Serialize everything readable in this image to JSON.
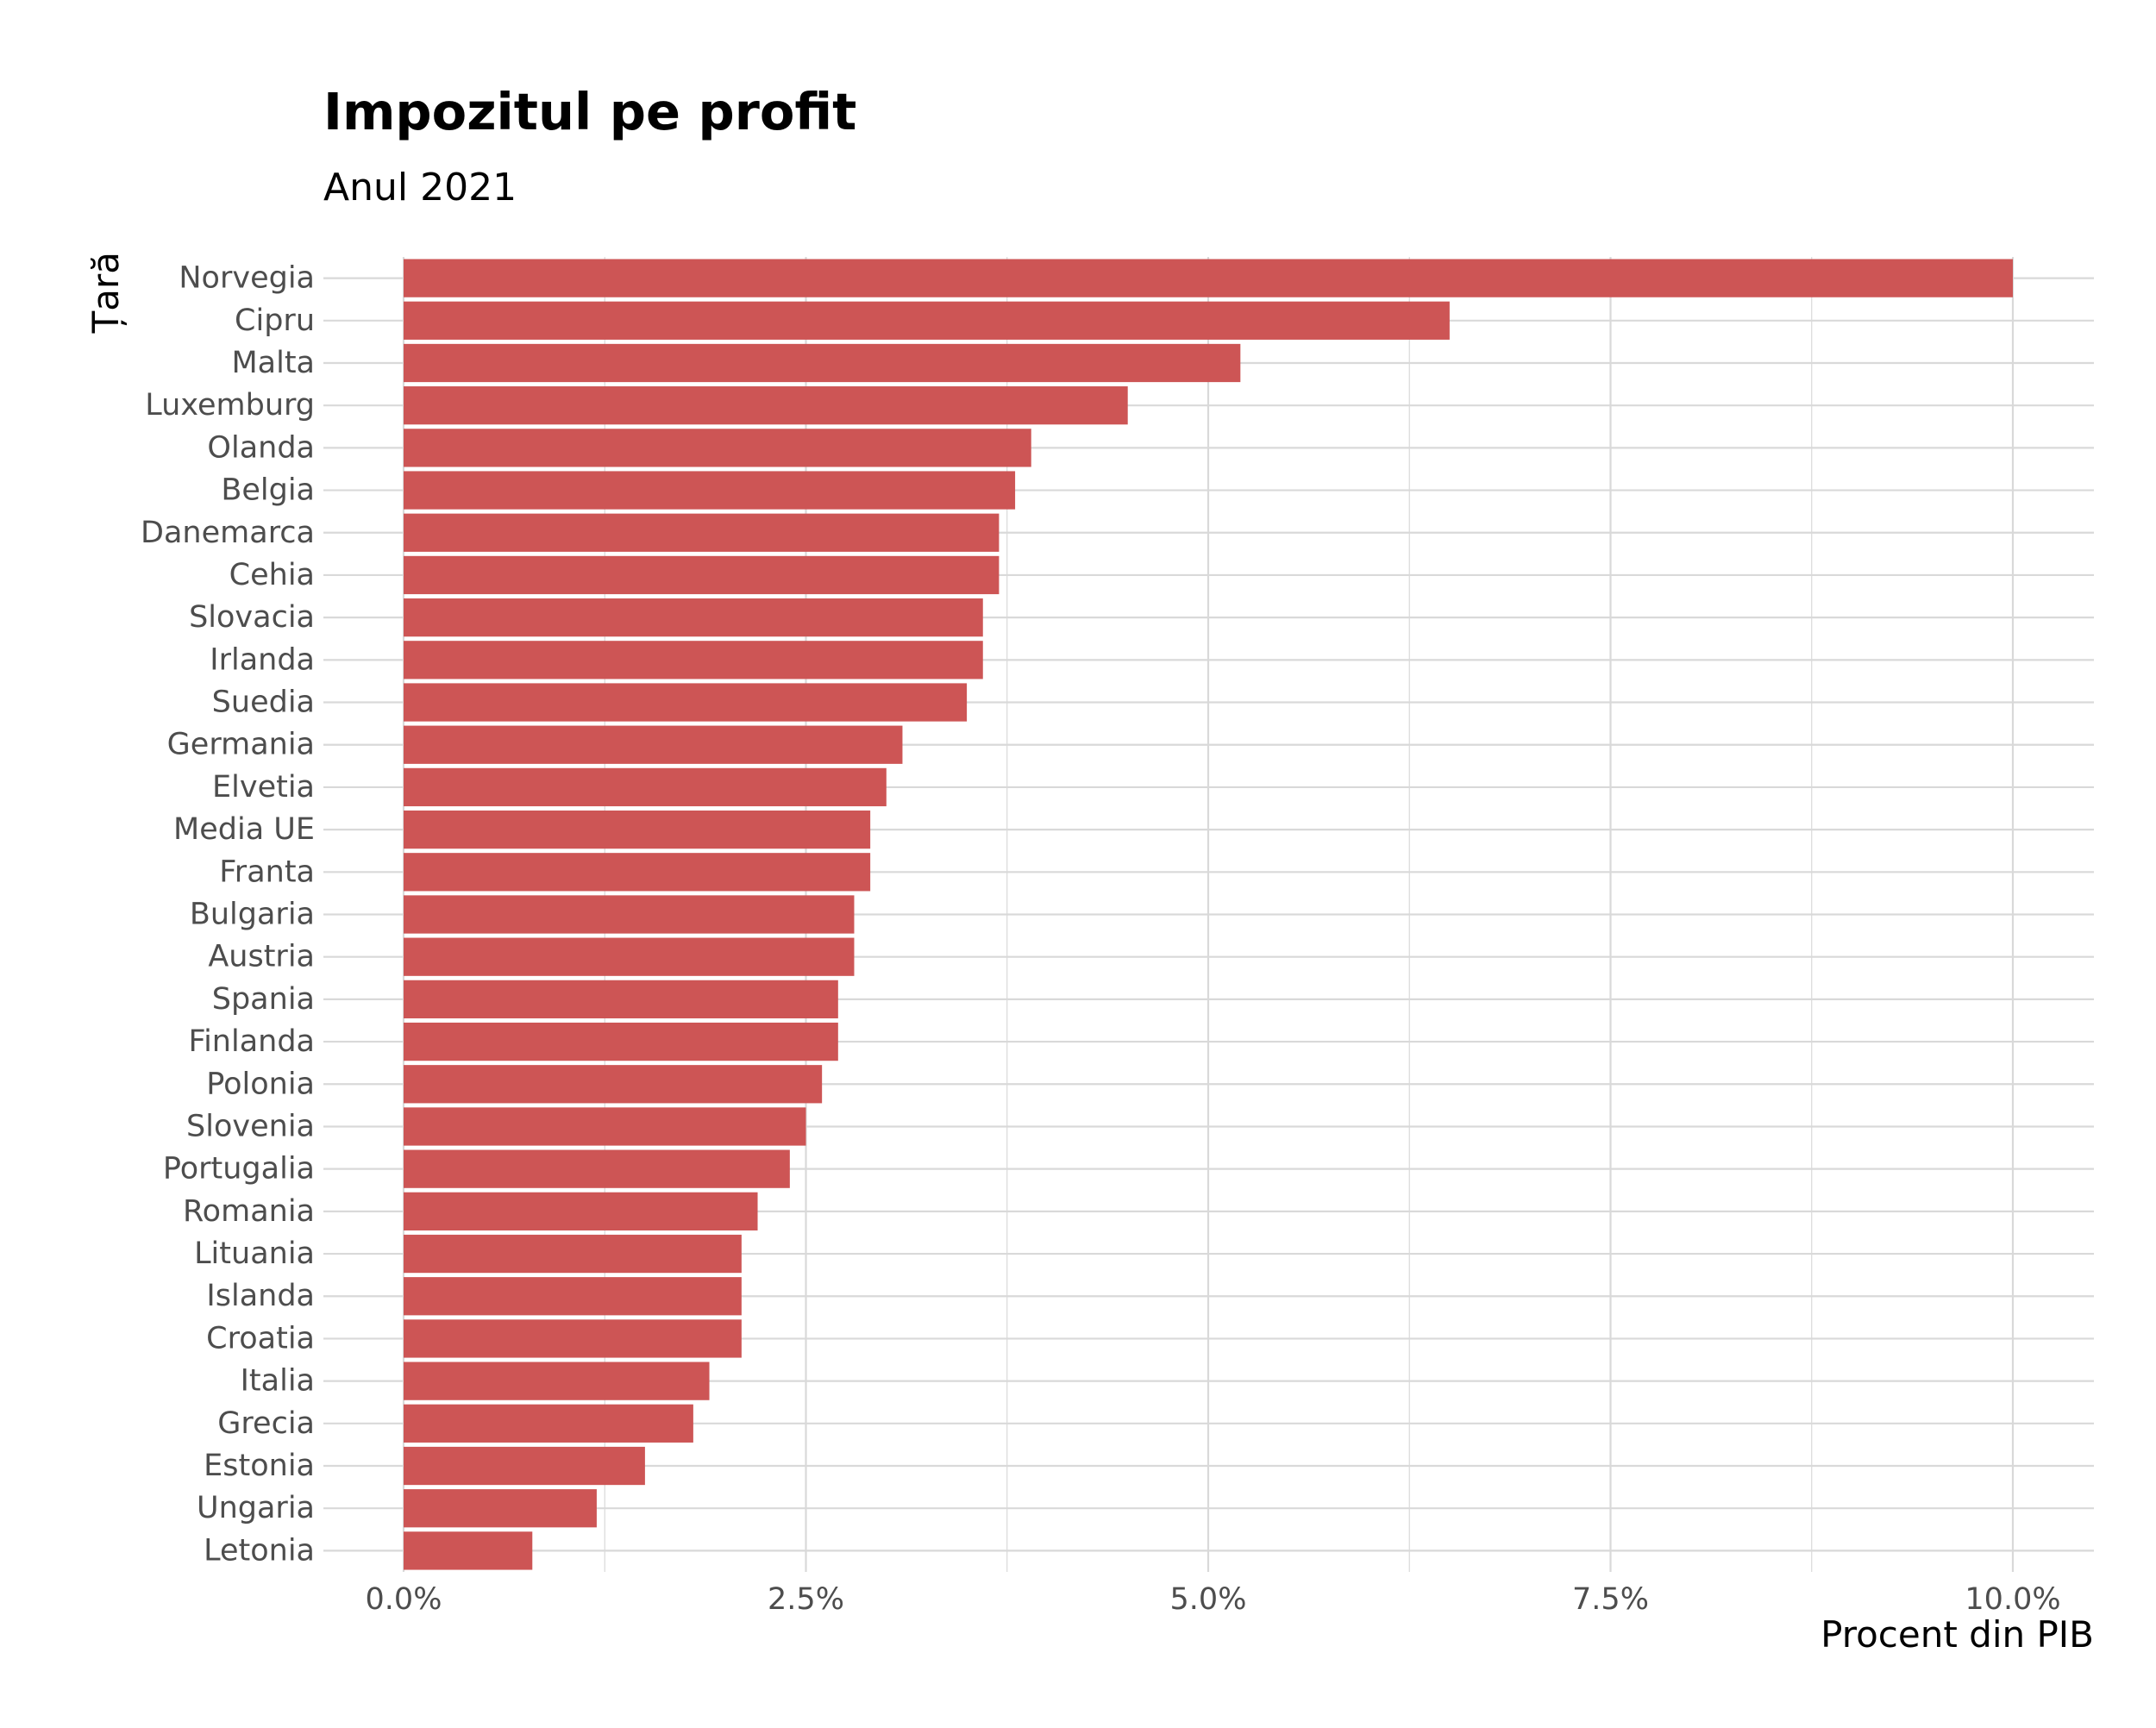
{
  "chart_data": {
    "type": "bar",
    "orientation": "horizontal",
    "title": "Impozitul pe profit",
    "subtitle": "Anul 2021",
    "xlabel": "Procent din PIB",
    "ylabel": "Țară",
    "xlim": [
      0,
      10.5
    ],
    "x_ticks": [
      0,
      2.5,
      5,
      7.5,
      10
    ],
    "x_tick_labels": [
      "0.0%",
      "2.5%",
      "5.0%",
      "7.5%",
      "10.0%"
    ],
    "grid": true,
    "categories": [
      "Norvegia",
      "Cipru",
      "Malta",
      "Luxemburg",
      "Olanda",
      "Belgia",
      "Danemarca",
      "Cehia",
      "Slovacia",
      "Irlanda",
      "Suedia",
      "Germania",
      "Elvetia",
      "Media UE",
      "Franta",
      "Bulgaria",
      "Austria",
      "Spania",
      "Finlanda",
      "Polonia",
      "Slovenia",
      "Portugalia",
      "Romania",
      "Lituania",
      "Islanda",
      "Croatia",
      "Italia",
      "Grecia",
      "Estonia",
      "Ungaria",
      "Letonia"
    ],
    "values": [
      10.0,
      6.5,
      5.2,
      4.5,
      3.9,
      3.8,
      3.7,
      3.7,
      3.6,
      3.6,
      3.5,
      3.1,
      3.0,
      2.9,
      2.9,
      2.8,
      2.8,
      2.7,
      2.7,
      2.6,
      2.5,
      2.4,
      2.2,
      2.1,
      2.1,
      2.1,
      1.9,
      1.8,
      1.5,
      1.2,
      0.8
    ],
    "bar_color": "#cd5555",
    "grid_color": "#d9d9d9"
  }
}
